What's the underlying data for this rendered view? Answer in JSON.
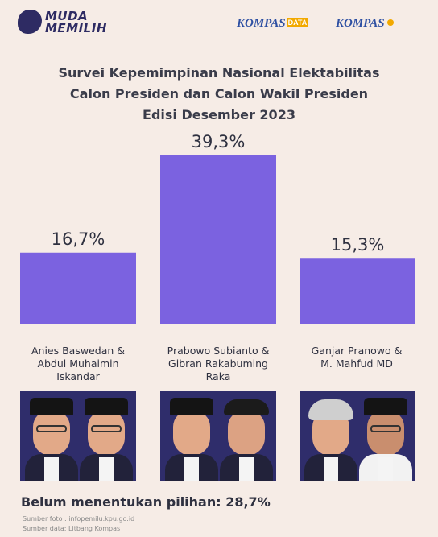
{
  "logos": {
    "muda_memilih_line1": "MUDA",
    "muda_memilih_line2": "MEMILIH",
    "kompas_data": "KOMPAS",
    "kompas_data_tag": "DATA",
    "kompas": "KOMPAS"
  },
  "title_lines": [
    "Survei Kepemimpinan Nasional Elektabilitas",
    "Calon Presiden dan Calon Wakil Presiden",
    "Edisi Desember 2023"
  ],
  "chart_data": {
    "type": "bar",
    "categories": [
      "Anies Baswedan & Abdul Muhaimin Iskandar",
      "Prabowo Subianto & Gibran Rakabuming Raka",
      "Ganjar Pranowo & M. Mahfud MD"
    ],
    "values": [
      16.7,
      39.3,
      15.3
    ],
    "value_labels": [
      "16,7%",
      "39,3%",
      "15,3%"
    ],
    "ylim": [
      0,
      39.3
    ],
    "bar_color": "#7b62e0",
    "grid": false
  },
  "candidates": [
    {
      "lines": [
        "Anies Baswedan &",
        "Abdul Muhaimin",
        "Iskandar"
      ]
    },
    {
      "lines": [
        "Prabowo Subianto &",
        "Gibran Rakabuming",
        "Raka"
      ]
    },
    {
      "lines": [
        "Ganjar Pranowo &",
        "M. Mahfud MD"
      ]
    }
  ],
  "undecided_text": "Belum menentukan pilihan: 28,7%",
  "sources": {
    "photo": "Sumber foto : infopemilu.kpu.go.id",
    "data": "Sumber data: Litbang Kompas"
  },
  "colors": {
    "background": "#f6ece6",
    "bar": "#7b62e0",
    "photo_bg": "#2f2d6b"
  }
}
